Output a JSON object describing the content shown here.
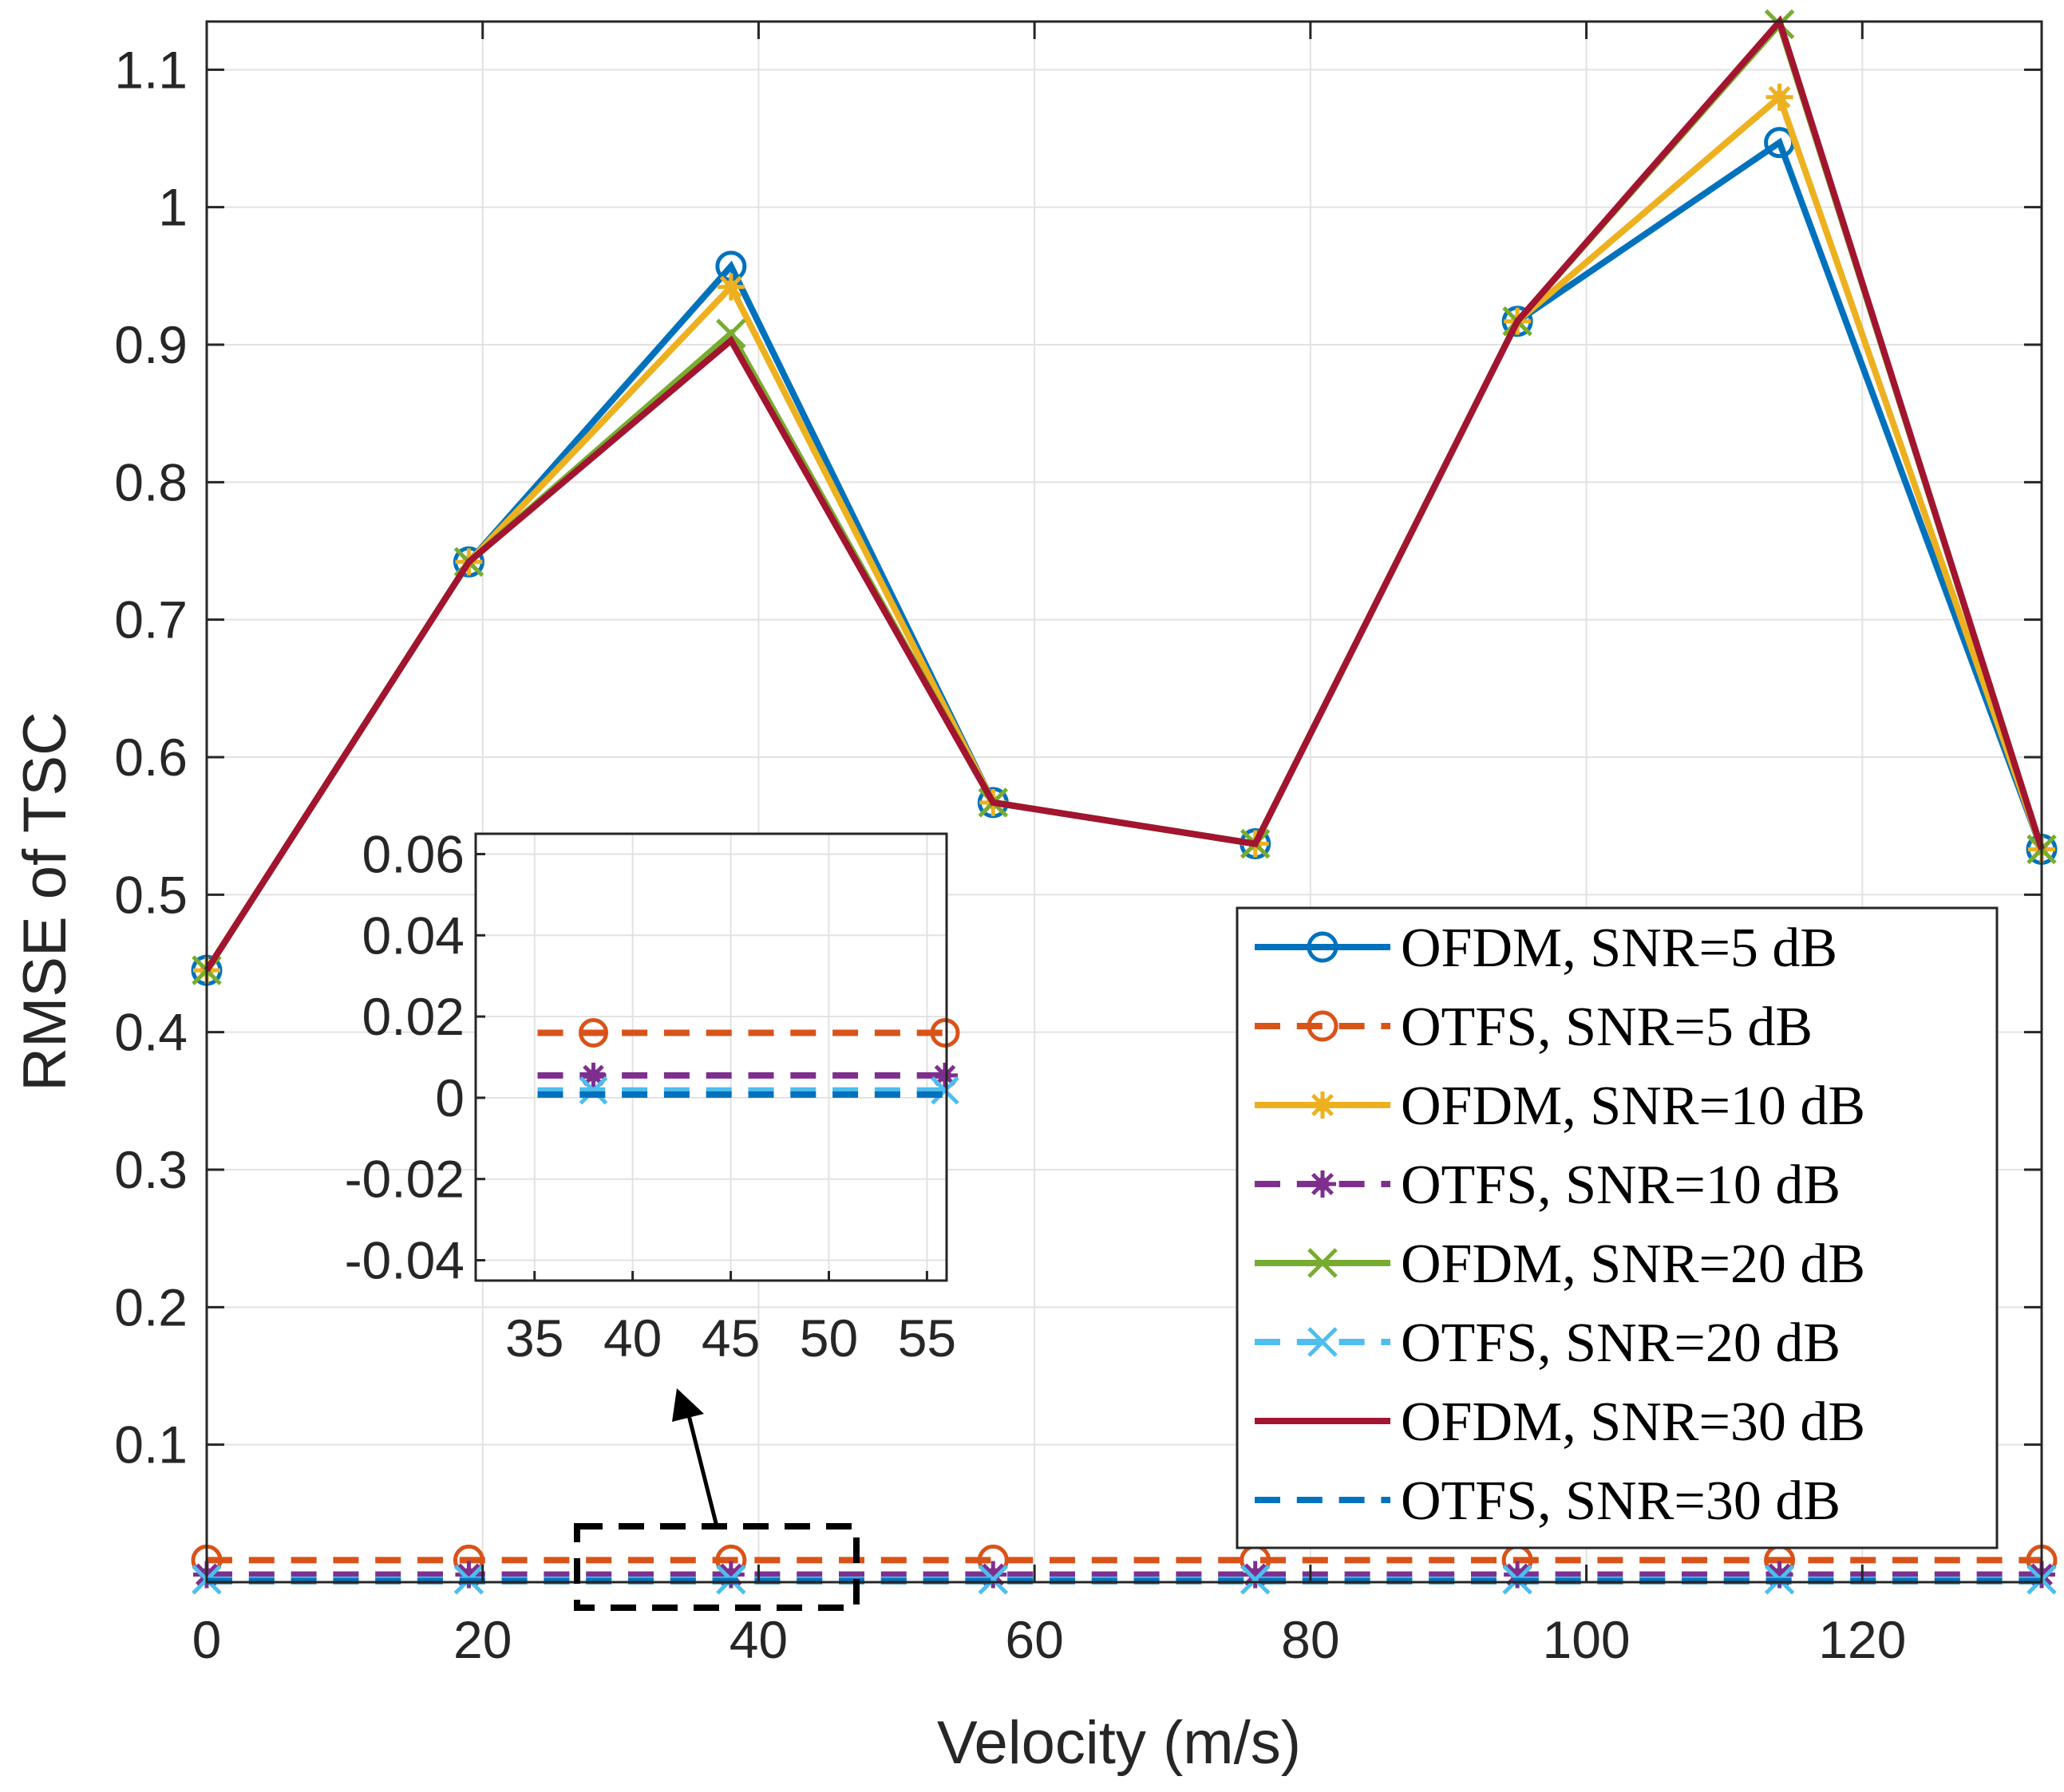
{
  "chart_data": {
    "type": "line",
    "xlabel": "Velocity (m/s)",
    "ylabel": "RMSE of TSC",
    "xlim": [
      0,
      133
    ],
    "ylim": [
      0,
      1.135
    ],
    "xticks": [
      0,
      20,
      40,
      60,
      80,
      100,
      120
    ],
    "yticks": [
      0.1,
      0.2,
      0.3,
      0.4,
      0.5,
      0.6,
      0.7,
      0.8,
      0.9,
      1,
      1.1
    ],
    "ytick_labels": [
      "0.1",
      "0.2",
      "0.3",
      "0.4",
      "0.5",
      "0.6",
      "0.7",
      "0.8",
      "0.9",
      "1",
      "1.1"
    ],
    "grid": true,
    "legend_position": "bottom-right",
    "x": [
      0,
      19,
      38,
      57,
      76,
      95,
      114,
      133
    ],
    "series": [
      {
        "name": "OFDM, SNR=5 dB",
        "color": "#0072BD",
        "dash": "solid",
        "marker": "o",
        "values": [
          0.445,
          0.742,
          0.957,
          0.567,
          0.537,
          0.917,
          1.047,
          0.533
        ]
      },
      {
        "name": "OTFS, SNR=5 dB",
        "color": "#D95319",
        "dash": "dashed",
        "marker": "o",
        "values": [
          0.016,
          0.016,
          0.016,
          0.016,
          0.016,
          0.016,
          0.016,
          0.016
        ]
      },
      {
        "name": "OFDM, SNR=10 dB",
        "color": "#EDB120",
        "dash": "solid",
        "marker": "*",
        "values": [
          0.445,
          0.742,
          0.942,
          0.567,
          0.537,
          0.917,
          1.08,
          0.533
        ]
      },
      {
        "name": "OTFS, SNR=10 dB",
        "color": "#7E2F8E",
        "dash": "dashed",
        "marker": "*",
        "values": [
          0.0055,
          0.0055,
          0.0055,
          0.0055,
          0.0055,
          0.0055,
          0.0055,
          0.0055
        ]
      },
      {
        "name": "OFDM, SNR=20 dB",
        "color": "#77AC30",
        "dash": "solid",
        "marker": "x",
        "values": [
          0.445,
          0.742,
          0.908,
          0.567,
          0.537,
          0.917,
          1.133,
          0.533
        ]
      },
      {
        "name": "OTFS, SNR=20 dB",
        "color": "#4DBEEE",
        "dash": "dashed",
        "marker": "x",
        "values": [
          0.0018,
          0.0018,
          0.0018,
          0.0018,
          0.0018,
          0.0018,
          0.0018,
          0.0018
        ]
      },
      {
        "name": "OFDM, SNR=30 dB",
        "color": "#A2142F",
        "dash": "solid",
        "marker": "none",
        "values": [
          0.445,
          0.742,
          0.903,
          0.567,
          0.537,
          0.917,
          1.135,
          0.533
        ]
      },
      {
        "name": "OTFS, SNR=30 dB",
        "color": "#0072BD",
        "dash": "dashed",
        "marker": "none",
        "values": [
          0.0008,
          0.0008,
          0.0008,
          0.0008,
          0.0008,
          0.0008,
          0.0008,
          0.0008
        ]
      }
    ],
    "inset": {
      "xlim": [
        32,
        56
      ],
      "ylim": [
        -0.045,
        0.065
      ],
      "xticks": [
        35,
        40,
        45,
        50,
        55
      ],
      "yticks": [
        -0.04,
        -0.02,
        0,
        0.02,
        0.04,
        0.06
      ],
      "ytick_labels": [
        "-0.04",
        "-0.02",
        "0",
        "0.02",
        "0.04",
        "0.06"
      ],
      "x": [
        38,
        57
      ]
    }
  }
}
